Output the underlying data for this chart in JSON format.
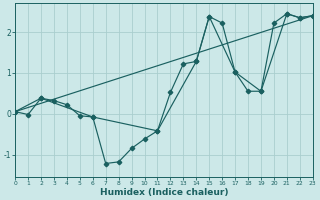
{
  "xlabel": "Humidex (Indice chaleur)",
  "bg_color": "#cce8e8",
  "line_color": "#1a6060",
  "grid_color": "#aacece",
  "xlim": [
    0,
    23
  ],
  "ylim": [
    -1.55,
    2.7
  ],
  "xticks": [
    0,
    1,
    2,
    3,
    4,
    5,
    6,
    7,
    8,
    9,
    10,
    11,
    12,
    13,
    14,
    15,
    16,
    17,
    18,
    19,
    20,
    21,
    22,
    23
  ],
  "yticks": [
    -1,
    0,
    1,
    2
  ],
  "line1_x": [
    0,
    1,
    2,
    3,
    4,
    5,
    6,
    7,
    8,
    9,
    10,
    11,
    12,
    13,
    14,
    15,
    16,
    17,
    18,
    19,
    20,
    21,
    22,
    23
  ],
  "line1_y": [
    0.05,
    -0.02,
    0.38,
    0.32,
    0.22,
    -0.05,
    -0.08,
    -1.22,
    -1.18,
    -0.85,
    -0.62,
    -0.42,
    0.52,
    1.22,
    1.28,
    2.38,
    2.22,
    1.02,
    0.55,
    0.55,
    2.22,
    2.45,
    2.35,
    2.4
  ],
  "line2_x": [
    0,
    2,
    6,
    11,
    14,
    15,
    17,
    19,
    21,
    22,
    23
  ],
  "line2_y": [
    0.05,
    0.38,
    -0.08,
    -0.42,
    1.28,
    2.38,
    1.02,
    0.55,
    2.45,
    2.35,
    2.4
  ],
  "trend_x": [
    0,
    23
  ],
  "trend_y": [
    0.05,
    2.4
  ]
}
